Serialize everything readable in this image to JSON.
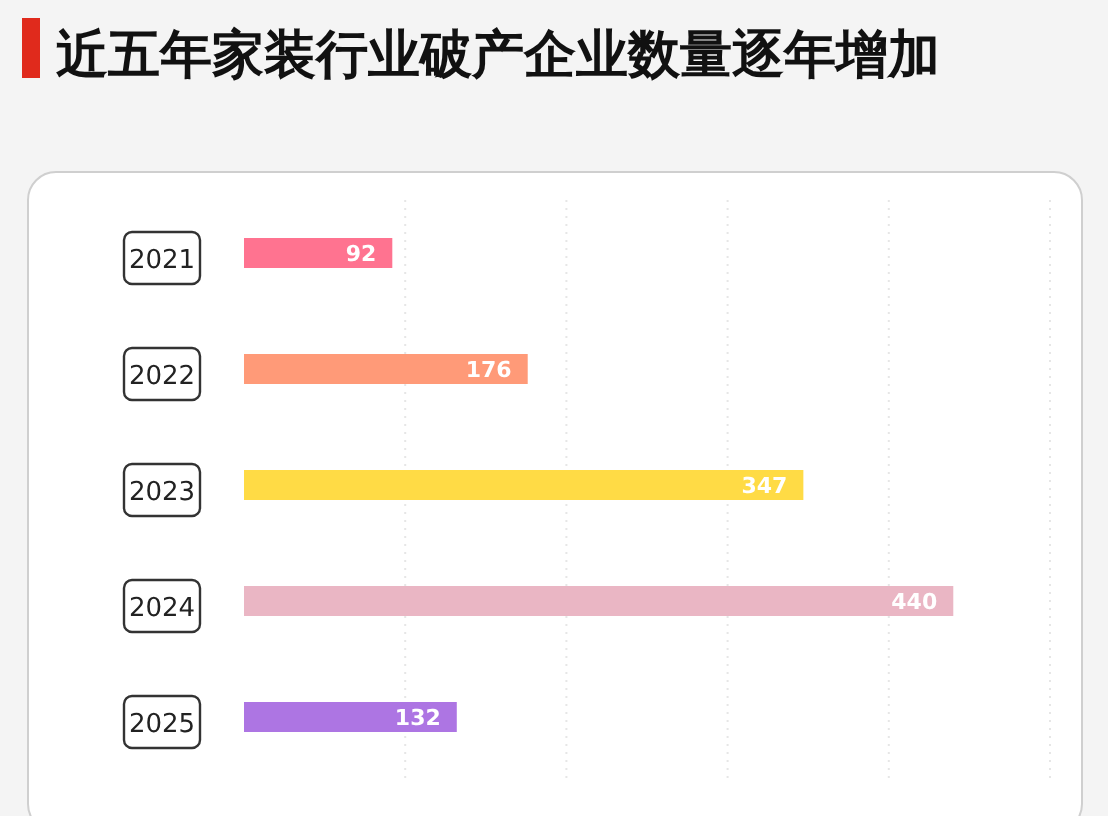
{
  "chart_data": {
    "type": "bar",
    "orientation": "horizontal",
    "title": "近五年家装行业破产企业数量逐年增加",
    "categories": [
      "2021",
      "2022",
      "2023",
      "2024",
      "2025"
    ],
    "values": [
      92,
      176,
      347,
      440,
      132
    ],
    "colors": [
      "#ff7390",
      "#ff9a78",
      "#ffdb45",
      "#eab6c4",
      "#ad75e3"
    ],
    "xlim": [
      0,
      500
    ],
    "xticks": [
      {
        "value": 100,
        "label": null
      },
      {
        "value": 200,
        "label": null
      },
      {
        "value": 300,
        "label": null
      },
      {
        "value": 400,
        "label": null
      },
      {
        "value": 500,
        "label": null
      }
    ],
    "grid": "x",
    "tick_labels": "y",
    "data_labels": true
  }
}
